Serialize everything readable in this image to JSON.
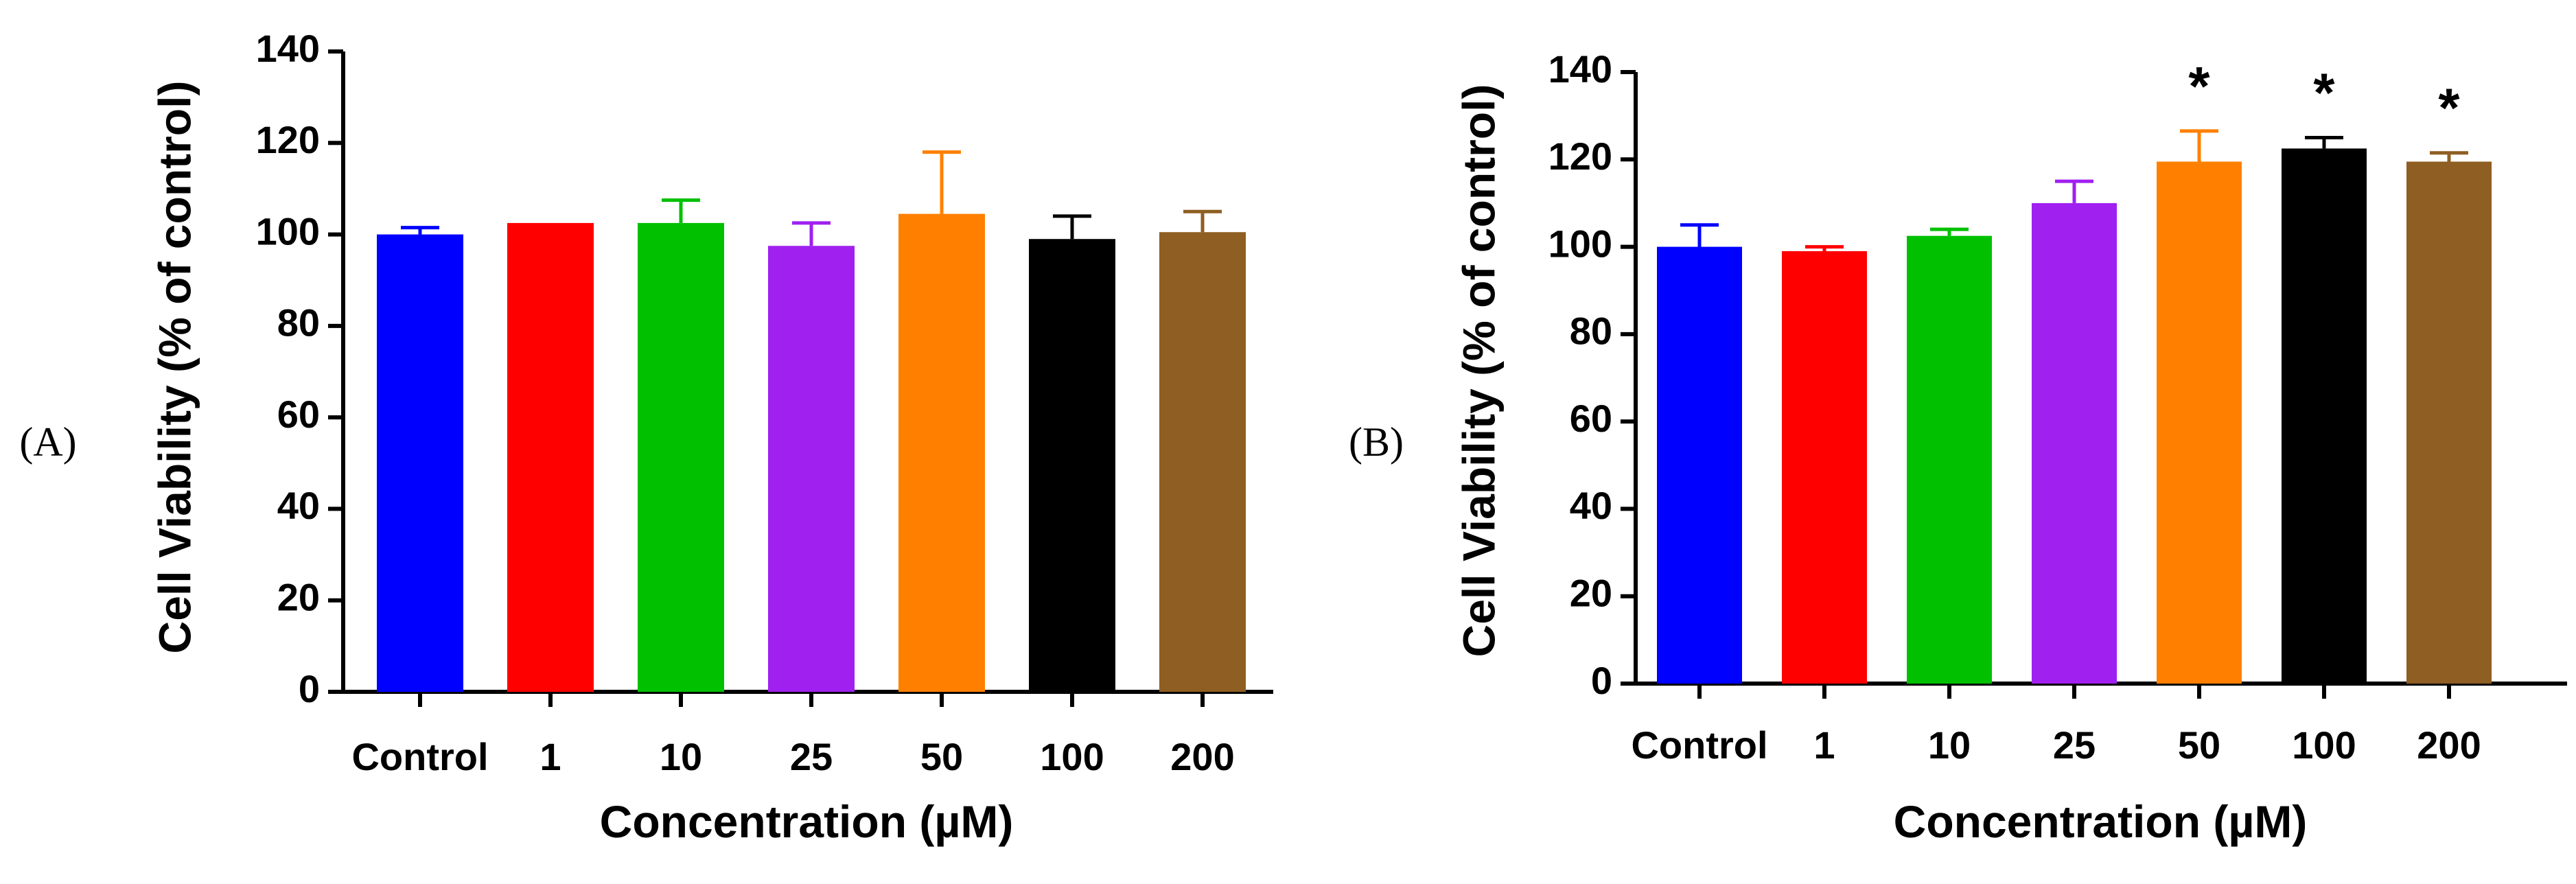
{
  "chart_data": [
    {
      "panel_label": "(A)",
      "type": "bar",
      "categories": [
        "Control",
        "1",
        "10",
        "25",
        "50",
        "100",
        "200"
      ],
      "values": [
        100,
        102.5,
        102.5,
        97.5,
        104.5,
        99,
        100.5
      ],
      "errors": [
        1.5,
        0,
        5,
        5,
        13.5,
        5,
        4.5
      ],
      "significance": [
        "",
        "",
        "",
        "",
        "",
        "",
        ""
      ],
      "colors": [
        "#0000ff",
        "#ff0000",
        "#00c000",
        "#a020f0",
        "#ff8000",
        "#000000",
        "#8f5e22"
      ],
      "xlabel": "Concentration (µM)",
      "ylabel": "Cell Viability (% of control)",
      "ylim": [
        0,
        140
      ],
      "yticks": [
        0,
        20,
        40,
        60,
        80,
        100,
        120,
        140
      ],
      "grid": false,
      "legend": "none"
    },
    {
      "panel_label": "(B)",
      "type": "bar",
      "categories": [
        "Control",
        "1",
        "10",
        "25",
        "50",
        "100",
        "200"
      ],
      "values": [
        100,
        99,
        102.5,
        110,
        119.5,
        122.5,
        119.5
      ],
      "errors": [
        5,
        1,
        1.5,
        5,
        7,
        2.5,
        2
      ],
      "significance": [
        "",
        "",
        "",
        "",
        "*",
        "*",
        "*"
      ],
      "colors": [
        "#0000ff",
        "#ff0000",
        "#00c000",
        "#a020f0",
        "#ff8000",
        "#000000",
        "#8f5e22"
      ],
      "xlabel": "Concentration (µM)",
      "ylabel": "Cell Viability (% of control)",
      "ylim": [
        0,
        140
      ],
      "yticks": [
        0,
        20,
        40,
        60,
        80,
        100,
        120,
        140
      ],
      "grid": false,
      "legend": "none"
    }
  ]
}
